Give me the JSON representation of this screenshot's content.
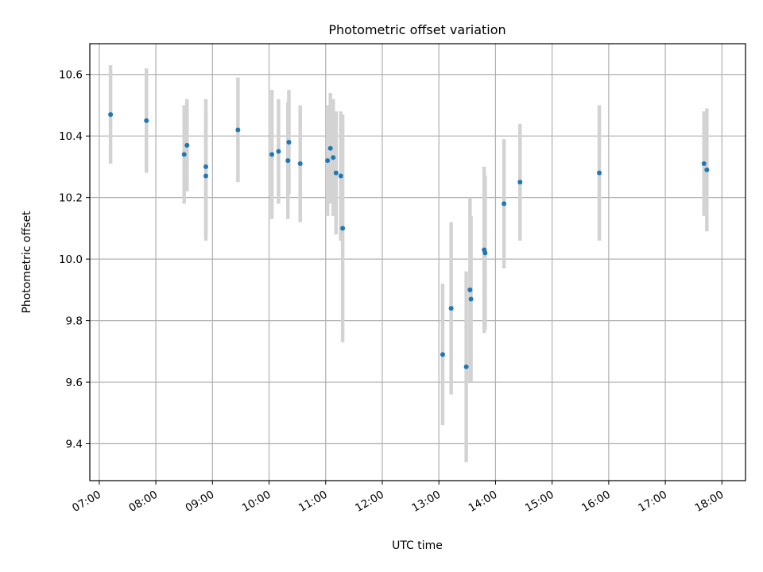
{
  "chart_data": {
    "type": "scatter",
    "title": "Photometric offset variation",
    "xlabel": "UTC time",
    "ylabel": "Photometric offset",
    "xlim": [
      "06:50",
      "18:25"
    ],
    "ylim": [
      9.28,
      10.7
    ],
    "x_ticks": [
      "07:00",
      "08:00",
      "09:00",
      "10:00",
      "11:00",
      "12:00",
      "13:00",
      "14:00",
      "15:00",
      "16:00",
      "17:00",
      "18:00"
    ],
    "y_ticks": [
      "9.4",
      "9.6",
      "9.8",
      "10.0",
      "10.2",
      "10.4",
      "10.6"
    ],
    "grid": true,
    "marker_color": "#1f77b4",
    "errorbar_color": "#d3d3d3",
    "series": [
      {
        "points": [
          {
            "x": "07:12",
            "y": 10.47,
            "err": 0.16
          },
          {
            "x": "07:50",
            "y": 10.45,
            "err": 0.17
          },
          {
            "x": "08:30",
            "y": 10.34,
            "err": 0.16
          },
          {
            "x": "08:33",
            "y": 10.37,
            "err": 0.15
          },
          {
            "x": "08:53",
            "y": 10.3,
            "err": 0.22
          },
          {
            "x": "08:53",
            "y": 10.27,
            "err": 0.21
          },
          {
            "x": "09:27",
            "y": 10.42,
            "err": 0.17
          },
          {
            "x": "10:03",
            "y": 10.34,
            "err": 0.21
          },
          {
            "x": "10:10",
            "y": 10.35,
            "err": 0.17
          },
          {
            "x": "10:20",
            "y": 10.32,
            "err": 0.19
          },
          {
            "x": "10:21",
            "y": 10.38,
            "err": 0.17
          },
          {
            "x": "10:33",
            "y": 10.31,
            "err": 0.19
          },
          {
            "x": "11:02",
            "y": 10.32,
            "err": 0.18
          },
          {
            "x": "11:05",
            "y": 10.36,
            "err": 0.18
          },
          {
            "x": "11:08",
            "y": 10.33,
            "err": 0.19
          },
          {
            "x": "11:11",
            "y": 10.28,
            "err": 0.2
          },
          {
            "x": "11:16",
            "y": 10.27,
            "err": 0.21
          },
          {
            "x": "11:18",
            "y": 10.1,
            "err": 0.37
          },
          {
            "x": "13:04",
            "y": 9.69,
            "err": 0.23
          },
          {
            "x": "13:13",
            "y": 9.84,
            "err": 0.28
          },
          {
            "x": "13:29",
            "y": 9.65,
            "err": 0.31
          },
          {
            "x": "13:33",
            "y": 9.9,
            "err": 0.3
          },
          {
            "x": "13:34",
            "y": 9.87,
            "err": 0.27
          },
          {
            "x": "13:48",
            "y": 10.03,
            "err": 0.27
          },
          {
            "x": "13:49",
            "y": 10.02,
            "err": 0.25
          },
          {
            "x": "14:09",
            "y": 10.18,
            "err": 0.21
          },
          {
            "x": "14:26",
            "y": 10.25,
            "err": 0.19
          },
          {
            "x": "15:50",
            "y": 10.28,
            "err": 0.22
          },
          {
            "x": "17:41",
            "y": 10.31,
            "err": 0.17
          },
          {
            "x": "17:44",
            "y": 10.29,
            "err": 0.2
          }
        ]
      }
    ]
  }
}
